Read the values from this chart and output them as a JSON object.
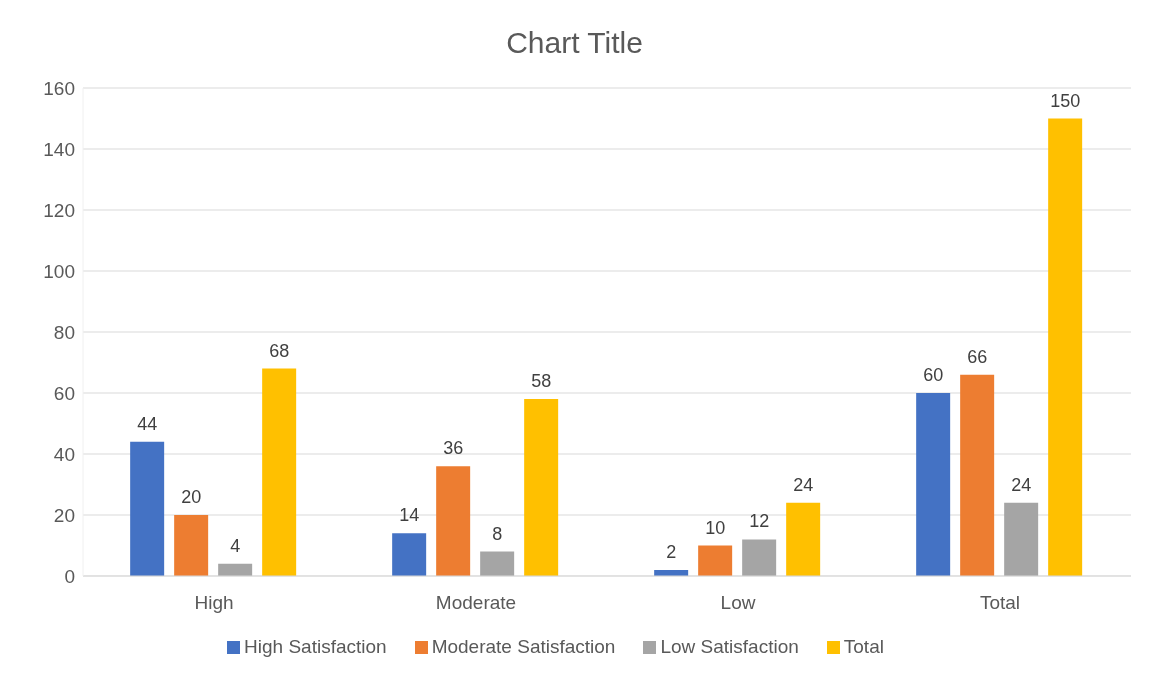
{
  "chart_data": {
    "type": "bar",
    "title": "Chart Title",
    "categories": [
      "High",
      "Moderate",
      "Low",
      "Total"
    ],
    "series": [
      {
        "name": "High Satisfaction",
        "color": "#4472c4",
        "values": [
          44,
          14,
          2,
          60
        ]
      },
      {
        "name": "Moderate Satisfaction",
        "color": "#ed7d31",
        "values": [
          20,
          36,
          10,
          66
        ]
      },
      {
        "name": "Low Satisfaction",
        "color": "#a5a5a5",
        "values": [
          4,
          8,
          12,
          24
        ]
      },
      {
        "name": "Total",
        "color": "#ffc000",
        "values": [
          68,
          58,
          24,
          150
        ]
      }
    ],
    "ylim": [
      0,
      160
    ],
    "yticks": [
      0,
      20,
      40,
      60,
      80,
      100,
      120,
      140,
      160
    ],
    "grid": "y",
    "legend": "bottom",
    "data_labels": true
  }
}
